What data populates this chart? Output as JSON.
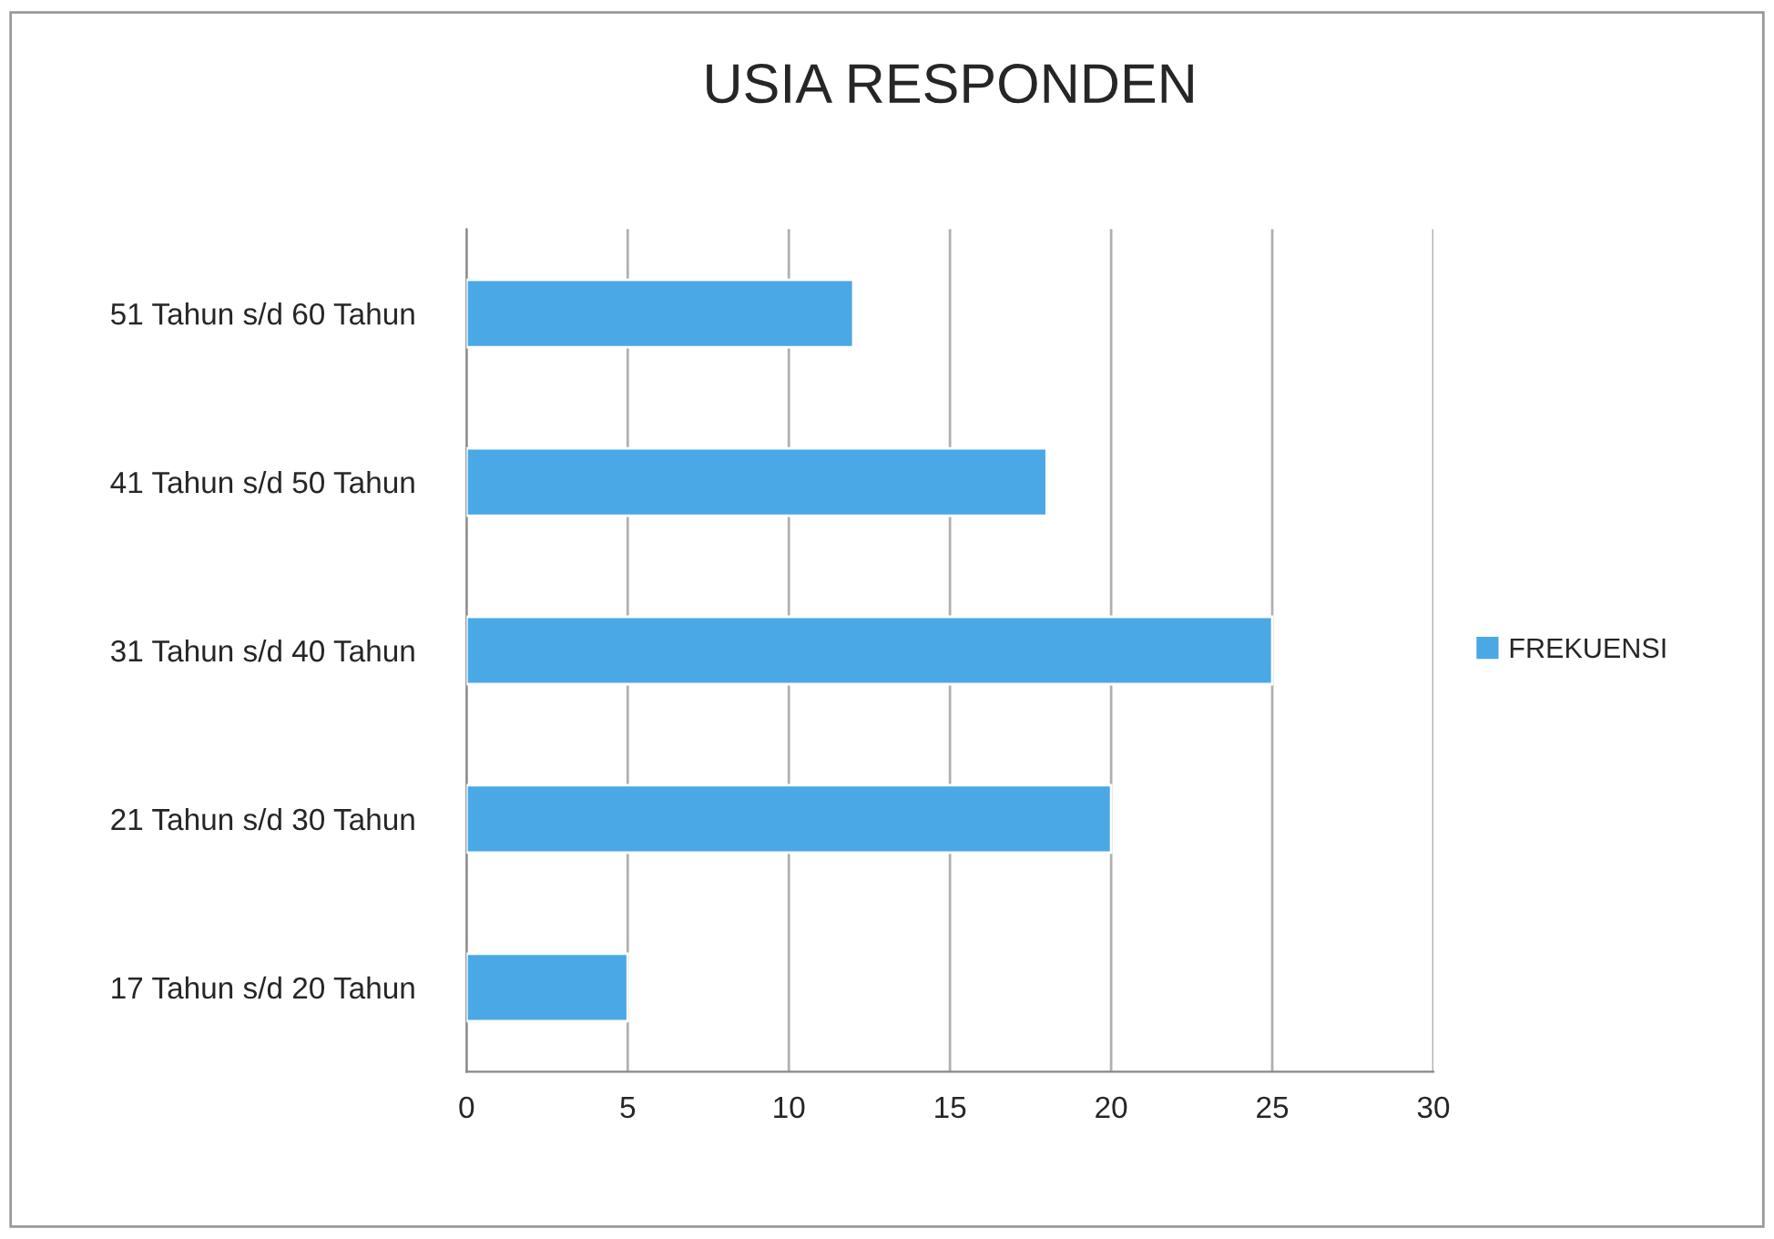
{
  "chart_data": {
    "type": "bar",
    "orientation": "horizontal",
    "title": "USIA RESPONDEN",
    "categories": [
      "51 Tahun s/d 60 Tahun",
      "41 Tahun s/d 50 Tahun",
      "31 Tahun s/d 40 Tahun",
      "21 Tahun s/d 30 Tahun",
      "17 Tahun s/d 20 Tahun"
    ],
    "series": [
      {
        "name": "FREKUENSI",
        "color": "#4aa8e6",
        "values": [
          12,
          18,
          25,
          20,
          5
        ]
      }
    ],
    "xlim": [
      0,
      30
    ],
    "xticks": [
      0,
      5,
      10,
      15,
      20,
      25,
      30
    ],
    "grid": "x",
    "legend": "right"
  }
}
